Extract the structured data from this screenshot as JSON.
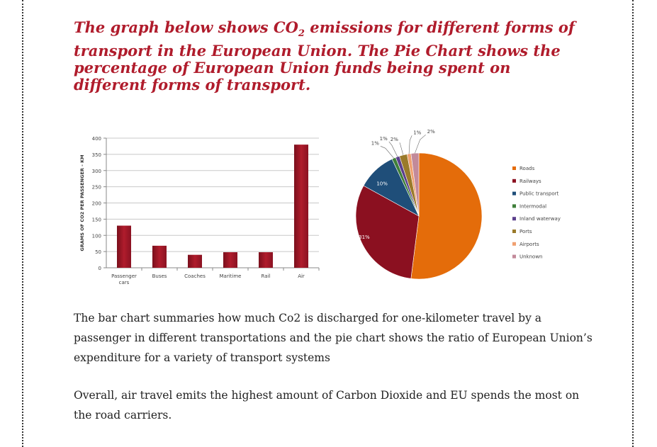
{
  "heading": {
    "part1": "The graph below shows CO",
    "subscript": "2",
    "part2": " emissions for different forms of transport in the European Union. The Pie Chart shows the percentage of European Union funds being spent on different forms of transport."
  },
  "paragraphs": [
    "The bar chart summaries how much Co2 is discharged for one-kilometer  travel by a passenger in different transportations and the pie chart shows the ratio of European Union’s expenditure for a variety of transport systems",
    "Overall, air travel emits the highest amount of Carbon Dioxide and EU spends the most on the road carriers."
  ],
  "colors": {
    "heading": "#b01c2c",
    "bar": "#b01c2c"
  },
  "chart_data": [
    {
      "type": "bar",
      "categories": [
        "Passenger cars",
        "Buses",
        "Coaches",
        "Maritime",
        "Rail",
        "Air"
      ],
      "category_lines": [
        [
          "Passenger",
          "cars"
        ],
        [
          "Buses"
        ],
        [
          "Coaches"
        ],
        [
          "Maritime"
        ],
        [
          "Rail"
        ],
        [
          "Air"
        ]
      ],
      "values": [
        130,
        68,
        40,
        48,
        48,
        380
      ],
      "ylabel": "GRAMS OF CO2 PER PASSENGER - KM",
      "xlabel": "",
      "ylim": [
        0,
        400
      ],
      "yticks": [
        0,
        50,
        100,
        150,
        200,
        250,
        300,
        350,
        400
      ],
      "grid": true,
      "color": "#b01c2c"
    },
    {
      "type": "pie",
      "labels": [
        "Roads",
        "Railways",
        "Public transport",
        "Intermodal",
        "Inland waterway",
        "Ports",
        "Airports",
        "Unknown"
      ],
      "values": [
        52,
        31,
        10,
        1,
        1,
        2,
        1,
        2
      ],
      "value_labels": [
        "52%",
        "31%",
        "10%",
        "1%",
        "1%",
        "2%",
        "1%",
        "2%"
      ],
      "colors": [
        "#e46c0a",
        "#8b1020",
        "#1f4e79",
        "#3f7f3a",
        "#5b3f8c",
        "#9a7a2a",
        "#f0a070",
        "#c38a9a"
      ],
      "legend_placement": "right"
    }
  ]
}
